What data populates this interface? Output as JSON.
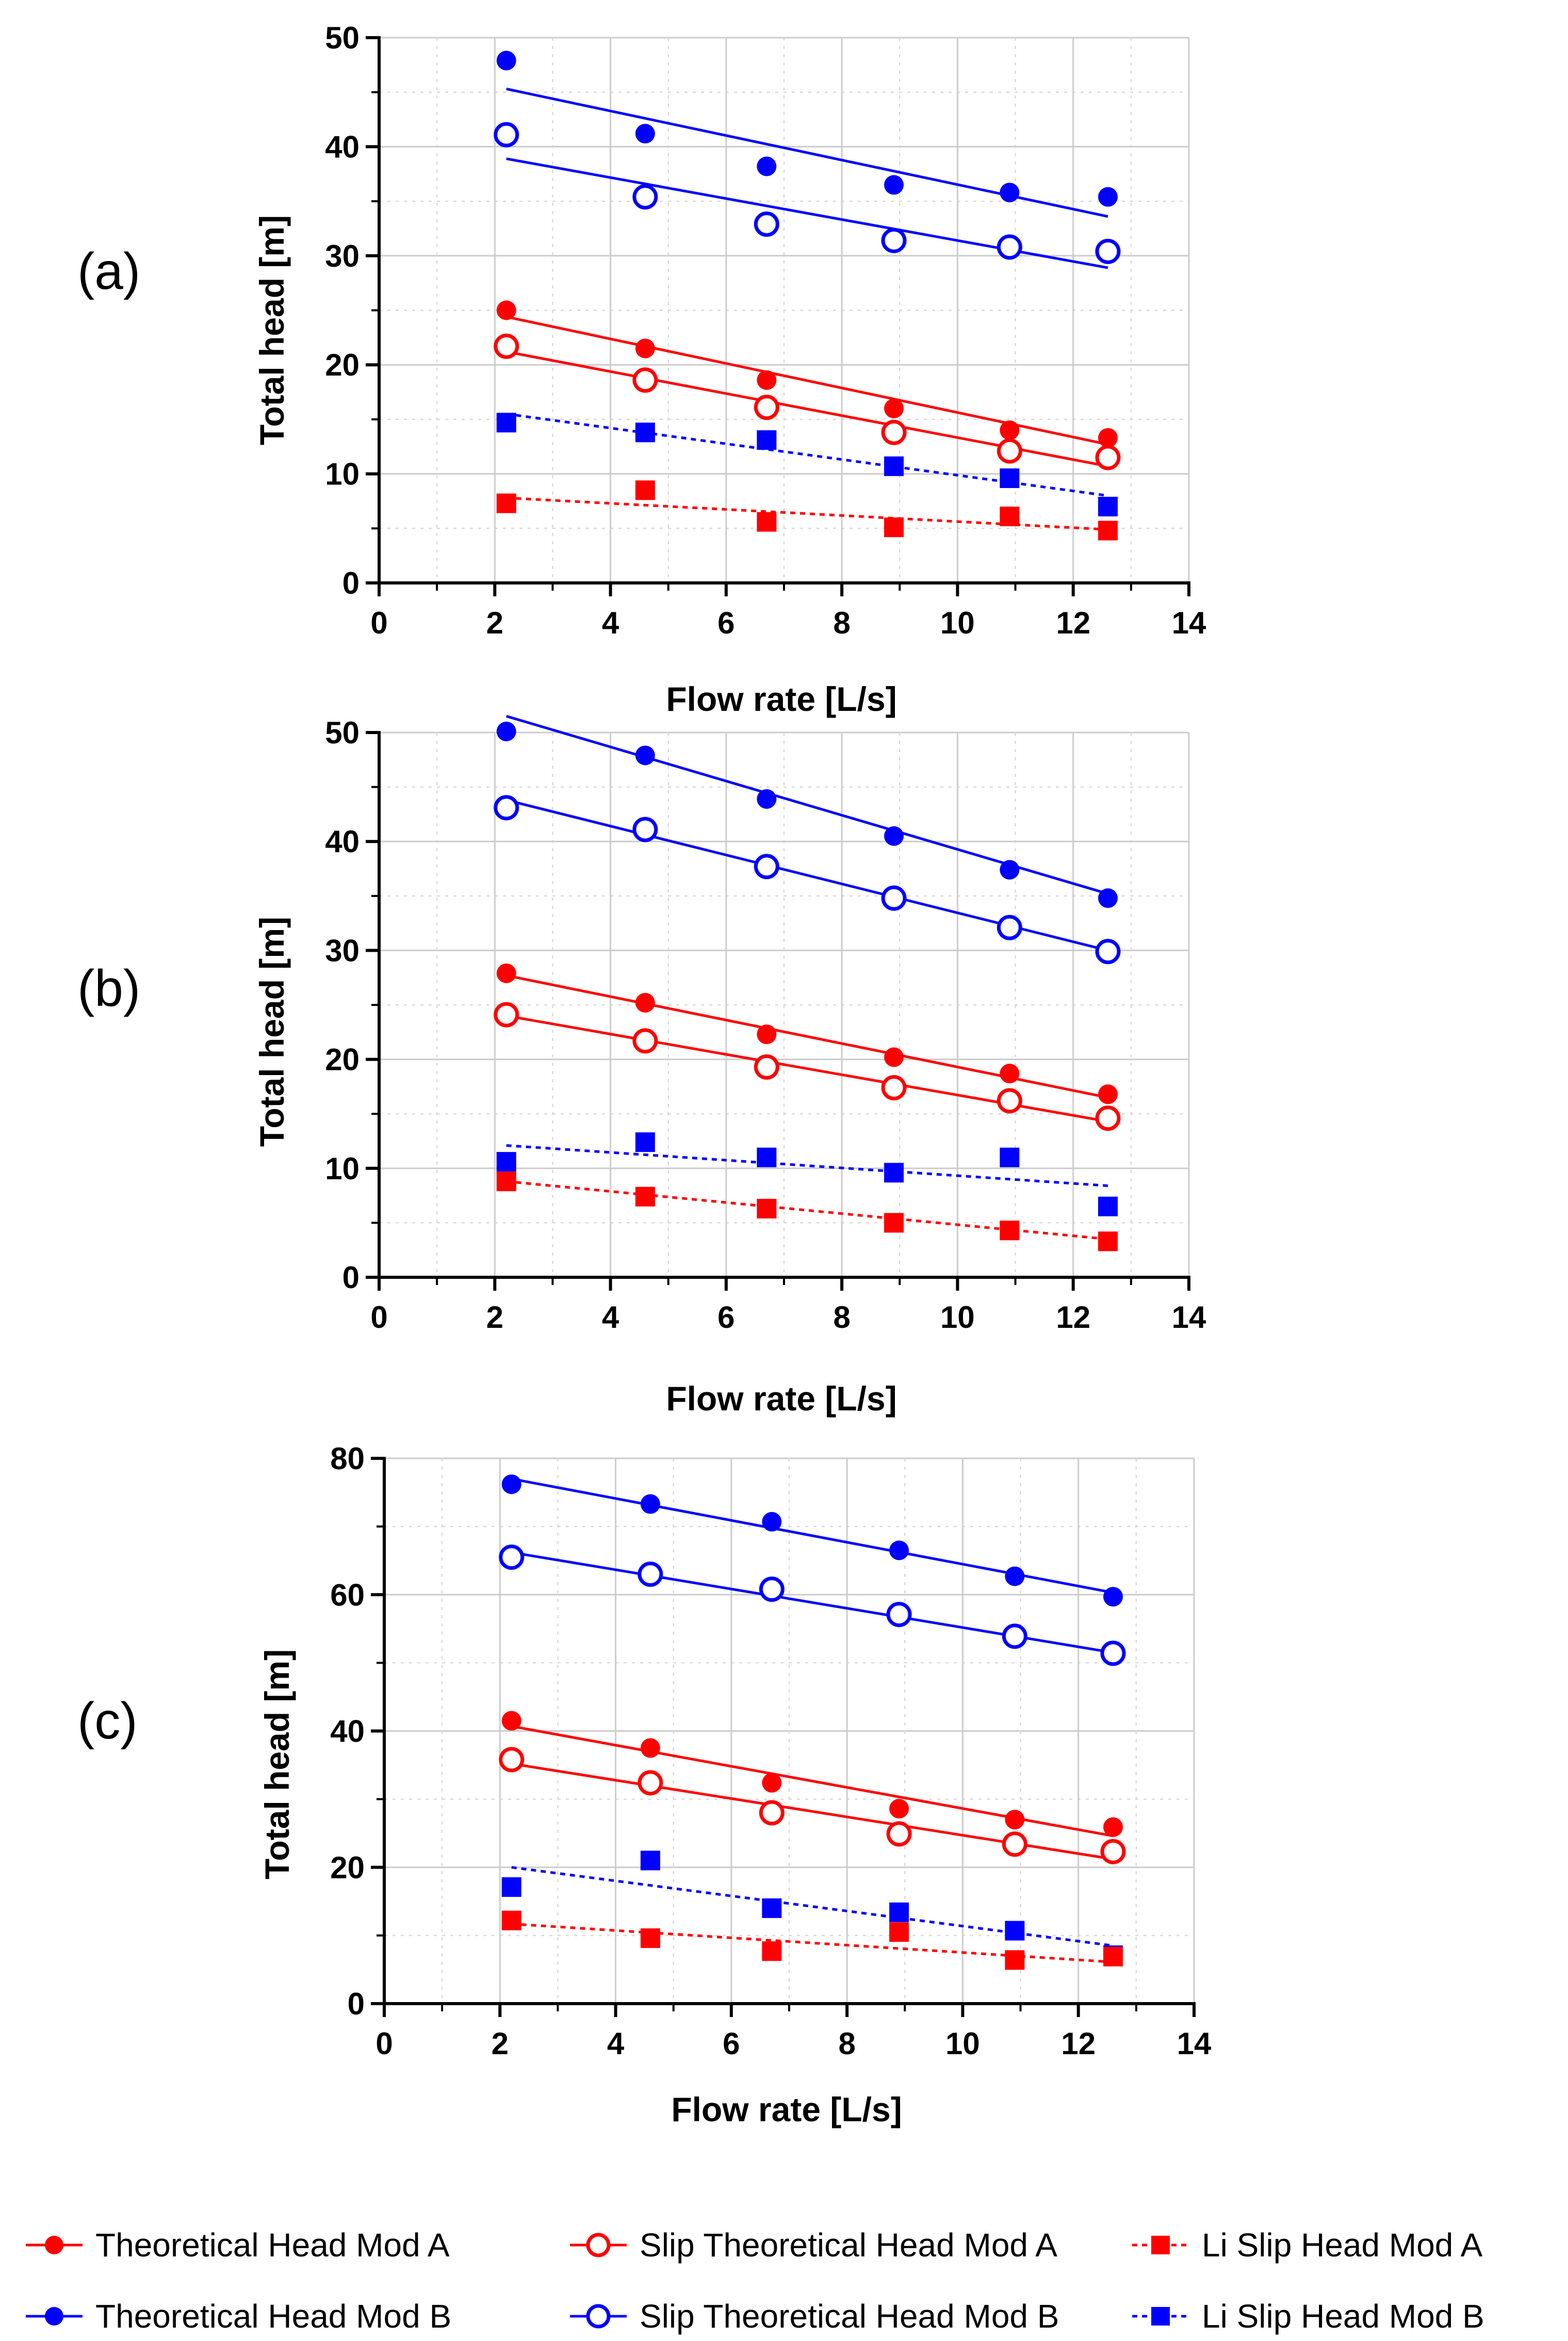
{
  "colors": {
    "mod_a": "#ff0000",
    "mod_b": "#0000ff"
  },
  "legend": {
    "items": [
      {
        "label": "Theoretical Head Mod A",
        "marker": "filled-circle",
        "color": "#ff0000",
        "line": "solid"
      },
      {
        "label": "Slip Theoretical Head Mod A",
        "marker": "open-circle",
        "color": "#ff0000",
        "line": "solid"
      },
      {
        "label": "Li Slip Head Mod A",
        "marker": "filled-square",
        "color": "#ff0000",
        "line": "dashed"
      },
      {
        "label": "Theoretical Head Mod B",
        "marker": "filled-circle",
        "color": "#0000ff",
        "line": "solid"
      },
      {
        "label": "Slip Theoretical Head Mod B",
        "marker": "open-circle",
        "color": "#0000ff",
        "line": "solid"
      },
      {
        "label": "Li Slip Head Mod B",
        "marker": "filled-square",
        "color": "#0000ff",
        "line": "dashed"
      }
    ]
  },
  "chart_data": [
    {
      "type": "scatter",
      "panel_label": "(a)",
      "xlabel": "Flow rate [L/s]",
      "ylabel": "Total head [m]",
      "xlim": [
        0,
        14
      ],
      "ylim": [
        0,
        50
      ],
      "xticks": [
        0,
        2,
        4,
        6,
        8,
        10,
        12,
        14
      ],
      "yticks": [
        0,
        10,
        20,
        30,
        40,
        50
      ],
      "grid": true,
      "x": [
        2.2,
        4.6,
        6.7,
        8.9,
        10.9,
        12.6
      ],
      "series": [
        {
          "name": "Theoretical Head Mod B",
          "values": [
            47.9,
            41.2,
            38.2,
            36.5,
            35.8,
            35.4
          ],
          "fit": [
            45.3,
            33.6
          ]
        },
        {
          "name": "Slip Theoretical Head Mod B",
          "values": [
            41.1,
            35.4,
            32.9,
            31.4,
            30.8,
            30.4
          ],
          "fit": [
            38.9,
            28.9
          ]
        },
        {
          "name": "Theoretical Head Mod A",
          "values": [
            25.0,
            21.5,
            18.6,
            16.0,
            14.0,
            13.3
          ],
          "fit": [
            24.4,
            12.7
          ]
        },
        {
          "name": "Slip Theoretical Head Mod A",
          "values": [
            21.7,
            18.6,
            16.1,
            13.8,
            12.1,
            11.5
          ],
          "fit": [
            21.2,
            10.7
          ]
        },
        {
          "name": "Li Slip Head Mod B",
          "values": [
            14.7,
            13.8,
            13.1,
            10.7,
            9.6,
            7.0
          ],
          "fit": [
            15.5,
            8.0
          ]
        },
        {
          "name": "Li Slip Head Mod A",
          "values": [
            7.3,
            8.5,
            5.6,
            5.1,
            6.1,
            4.8
          ],
          "fit": [
            7.8,
            4.9
          ]
        }
      ]
    },
    {
      "type": "scatter",
      "panel_label": "(b)",
      "xlabel": "Flow rate [L/s]",
      "ylabel": "Total head [m]",
      "xlim": [
        0,
        14
      ],
      "ylim": [
        0,
        50
      ],
      "xticks": [
        0,
        2,
        4,
        6,
        8,
        10,
        12,
        14
      ],
      "yticks": [
        0,
        10,
        20,
        30,
        40,
        50
      ],
      "grid": true,
      "x": [
        2.2,
        4.6,
        6.7,
        8.9,
        10.9,
        12.6
      ],
      "series": [
        {
          "name": "Theoretical Head Mod B",
          "values": [
            50.1,
            47.9,
            43.9,
            40.5,
            37.4,
            34.8
          ],
          "fit": [
            51.5,
            35.2
          ]
        },
        {
          "name": "Slip Theoretical Head Mod B",
          "values": [
            43.1,
            41.1,
            37.7,
            34.8,
            32.1,
            29.9
          ],
          "fit": [
            43.8,
            30.0
          ]
        },
        {
          "name": "Theoretical Head Mod A",
          "values": [
            27.9,
            25.2,
            22.3,
            20.2,
            18.7,
            16.8
          ],
          "fit": [
            27.7,
            16.5
          ]
        },
        {
          "name": "Slip Theoretical Head Mod A",
          "values": [
            24.1,
            21.7,
            19.3,
            17.4,
            16.2,
            14.6
          ],
          "fit": [
            24.0,
            14.3
          ]
        },
        {
          "name": "Li Slip Head Mod B",
          "values": [
            10.6,
            12.4,
            11.0,
            9.6,
            11.0,
            6.5
          ],
          "fit": [
            12.1,
            8.4
          ]
        },
        {
          "name": "Li Slip Head Mod A",
          "values": [
            8.8,
            7.4,
            6.3,
            5.0,
            4.3,
            3.3
          ],
          "fit": [
            8.8,
            3.5
          ]
        }
      ]
    },
    {
      "type": "scatter",
      "panel_label": "(c)",
      "xlabel": "Flow rate [L/s]",
      "ylabel": "Total head [m]",
      "xlim": [
        0,
        14
      ],
      "ylim": [
        0,
        80
      ],
      "xticks": [
        0,
        2,
        4,
        6,
        8,
        10,
        12,
        14
      ],
      "yticks": [
        0,
        20,
        40,
        60,
        80
      ],
      "grid": true,
      "x": [
        2.2,
        4.6,
        6.7,
        8.9,
        10.9,
        12.6
      ],
      "series": [
        {
          "name": "Theoretical Head Mod B",
          "values": [
            76.2,
            73.3,
            70.7,
            66.5,
            62.7,
            59.7
          ],
          "fit": [
            77.0,
            60.3
          ]
        },
        {
          "name": "Slip Theoretical Head Mod B",
          "values": [
            65.5,
            63.0,
            60.8,
            57.1,
            53.9,
            51.4
          ],
          "fit": [
            66.2,
            51.5
          ]
        },
        {
          "name": "Theoretical Head Mod A",
          "values": [
            41.5,
            37.5,
            32.4,
            28.6,
            27.0,
            25.9
          ],
          "fit": [
            40.7,
            24.6
          ]
        },
        {
          "name": "Slip Theoretical Head Mod A",
          "values": [
            35.8,
            32.4,
            28.0,
            24.9,
            23.4,
            22.3
          ],
          "fit": [
            35.2,
            21.2
          ]
        },
        {
          "name": "Li Slip Head Mod B",
          "values": [
            17.1,
            21.0,
            14.0,
            13.4,
            10.7,
            7.1
          ],
          "fit": [
            20.0,
            8.5
          ]
        },
        {
          "name": "Li Slip Head Mod A",
          "values": [
            12.2,
            9.6,
            7.7,
            10.5,
            6.4,
            6.9
          ],
          "fit": [
            11.7,
            6.1
          ]
        }
      ]
    }
  ]
}
